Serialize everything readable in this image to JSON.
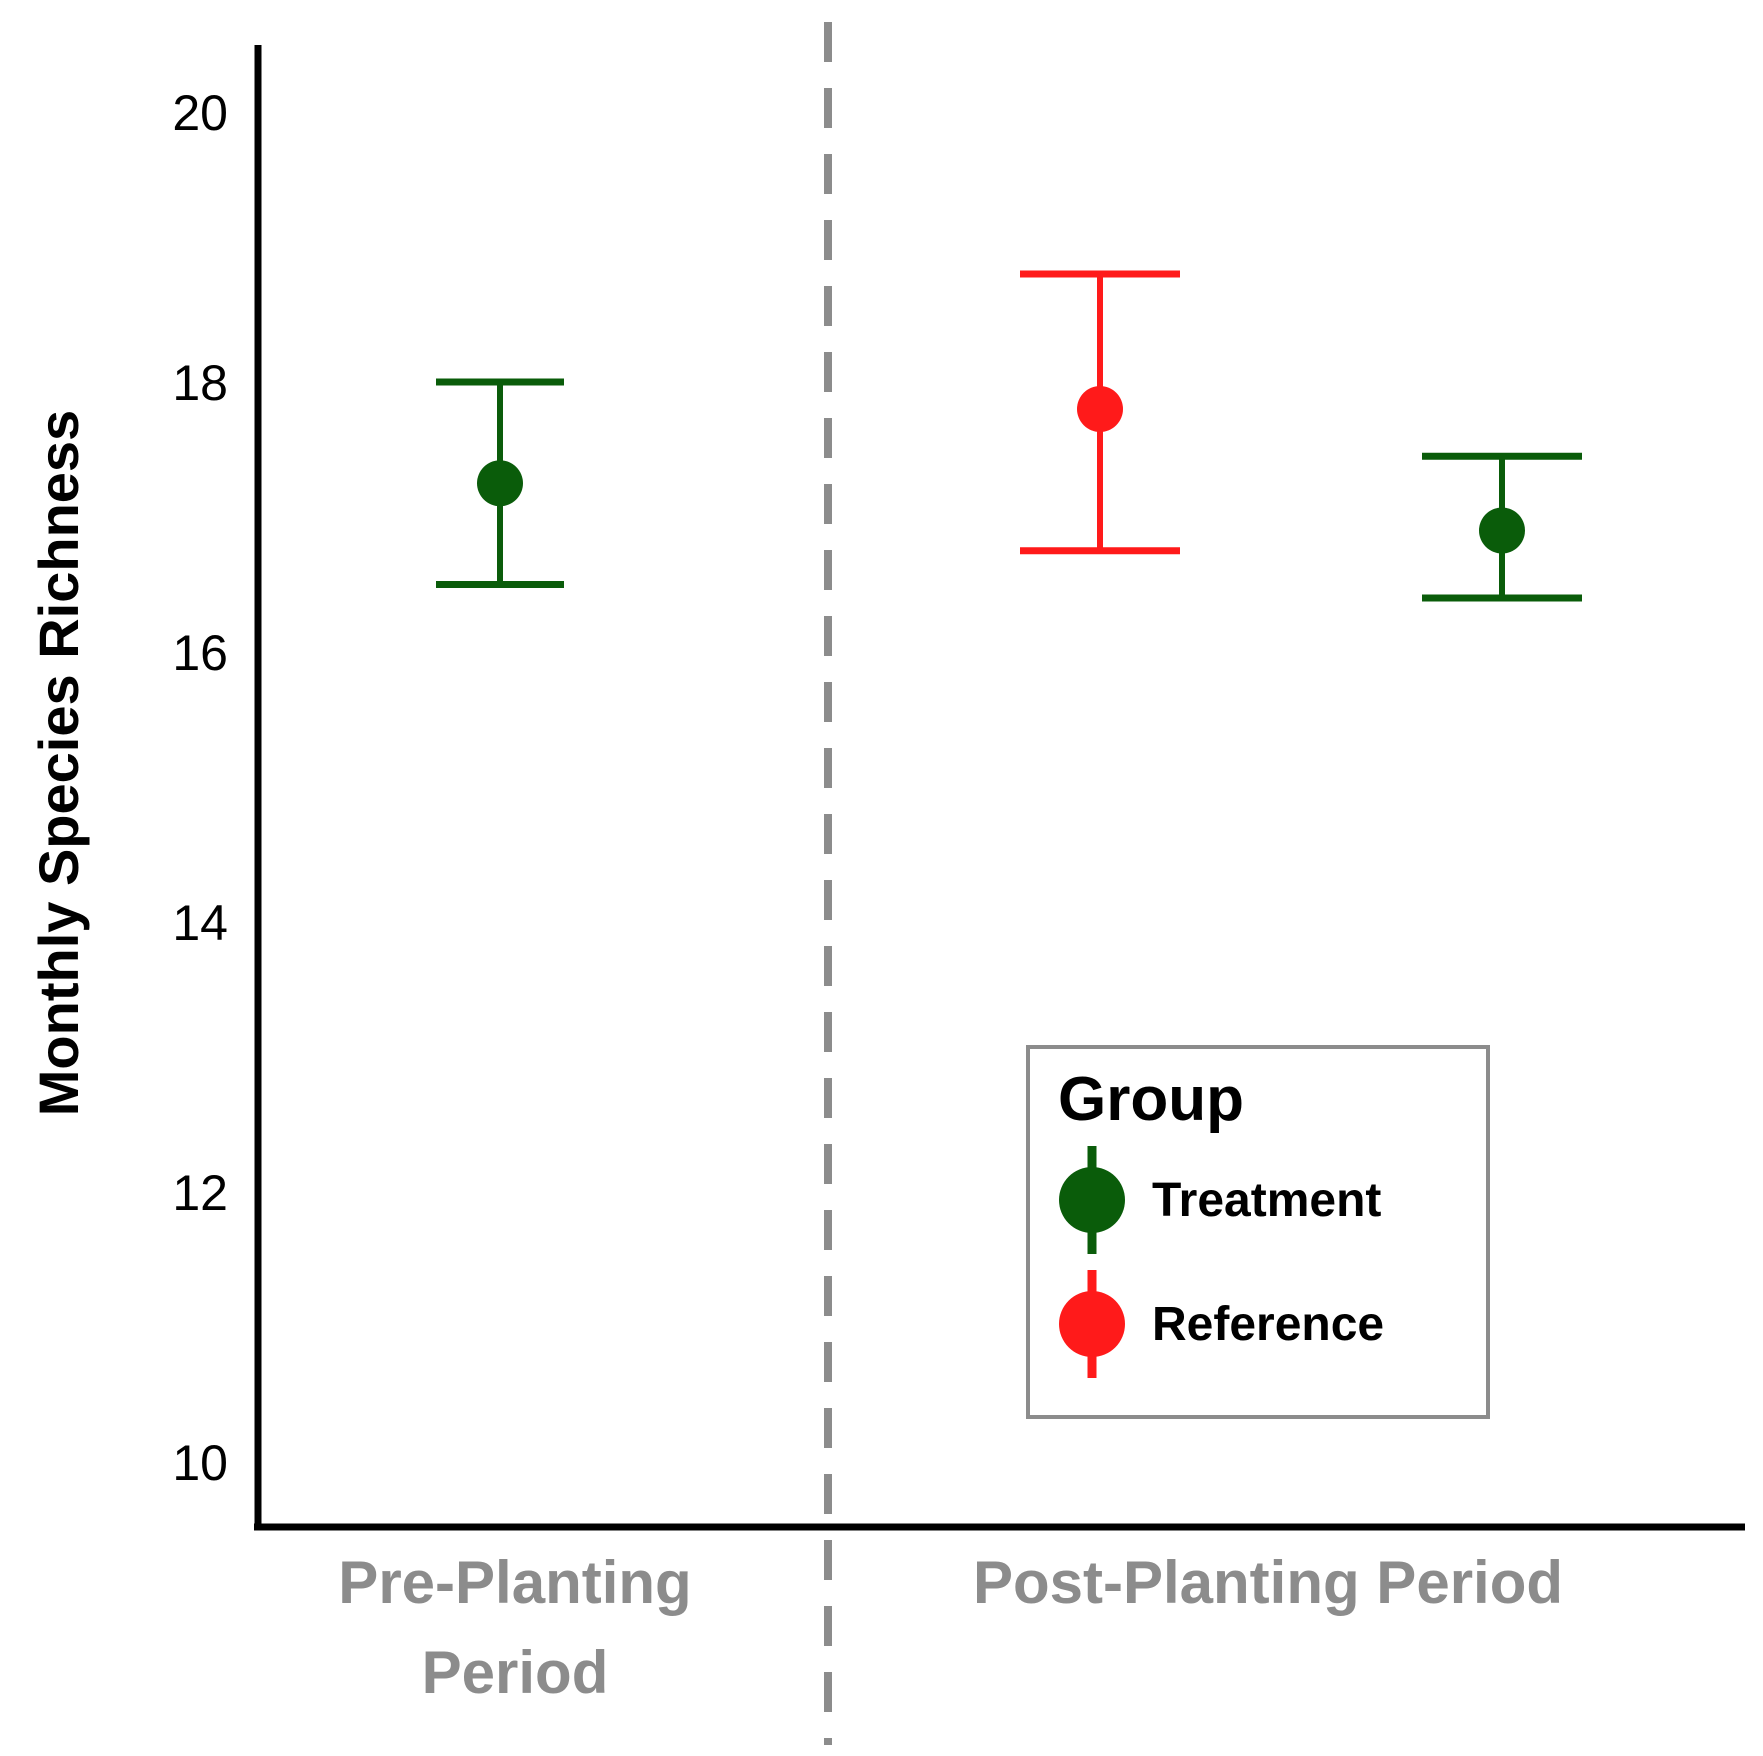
{
  "chart_data": {
    "type": "scatter",
    "ylabel": "Monthly Species Richness",
    "xlabel": "",
    "ylim": [
      9.5,
      20.5
    ],
    "yticks": [
      10,
      12,
      14,
      16,
      18,
      20
    ],
    "grid": false,
    "period_divider": "dashed vertical line between periods",
    "categories": [
      "Pre-Planting\nPeriod",
      "Post-Planting Period"
    ],
    "category_lines": {
      "pre": [
        "Pre-Planting",
        "Period"
      ],
      "post": [
        "Post-Planting Period"
      ]
    },
    "legend": {
      "title": "Group",
      "position": "bottom-right",
      "items": [
        {
          "label": "Treatment",
          "color": "#0a5c0a"
        },
        {
          "label": "Reference",
          "color": "#ff1a1a"
        }
      ]
    },
    "series": [
      {
        "name": "Treatment",
        "color": "#0a5c0a",
        "points": [
          {
            "period": "Pre-Planting Period",
            "mean": 17.25,
            "lower": 16.5,
            "upper": 18.0
          },
          {
            "period": "Post-Planting Period",
            "mean": 16.9,
            "lower": 16.4,
            "upper": 17.45
          }
        ]
      },
      {
        "name": "Reference",
        "color": "#ff1a1a",
        "points": [
          {
            "period": "Post-Planting Period",
            "mean": 17.8,
            "lower": 16.75,
            "upper": 18.8
          }
        ]
      }
    ]
  },
  "colors": {
    "axis": "#000000",
    "divider": "#8c8c8c",
    "category_label": "#8c8c8c",
    "legend_border": "#8c8c8c"
  }
}
